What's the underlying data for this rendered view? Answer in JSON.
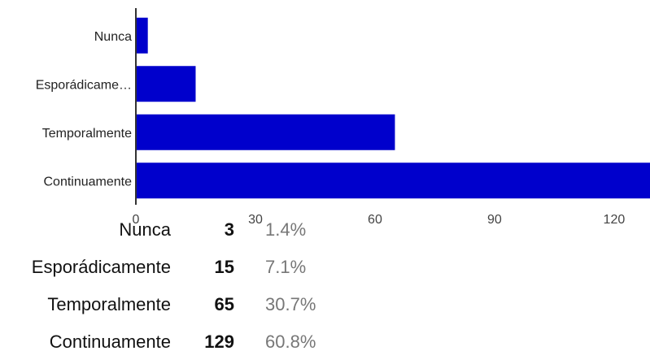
{
  "chart_data": {
    "type": "bar",
    "orientation": "horizontal",
    "categories": [
      "Nunca",
      "Esporádicamente",
      "Temporalmente",
      "Continuamente"
    ],
    "category_tick_labels": [
      "Nunca",
      "Esporádicame…",
      "Temporalmente",
      "Continuamente"
    ],
    "values": [
      3,
      15,
      65,
      129
    ],
    "percentages": [
      "1.4%",
      "7.1%",
      "30.7%",
      "60.8%"
    ],
    "xlim": [
      0,
      129
    ],
    "x_ticks": [
      0,
      30,
      60,
      90,
      120
    ],
    "x_tick_labels": [
      "0",
      "30",
      "60",
      "90",
      "120"
    ],
    "title": "",
    "xlabel": "",
    "ylabel": "",
    "grid": false,
    "legend": "none",
    "bar_color": "#0000cc"
  },
  "summary": {
    "rows": [
      {
        "label": "Nunca",
        "count": "3",
        "percent": "1.4%"
      },
      {
        "label": "Esporádicamente",
        "count": "15",
        "percent": "7.1%"
      },
      {
        "label": "Temporalmente",
        "count": "65",
        "percent": "30.7%"
      },
      {
        "label": "Continuamente",
        "count": "129",
        "percent": "60.8%"
      }
    ]
  }
}
